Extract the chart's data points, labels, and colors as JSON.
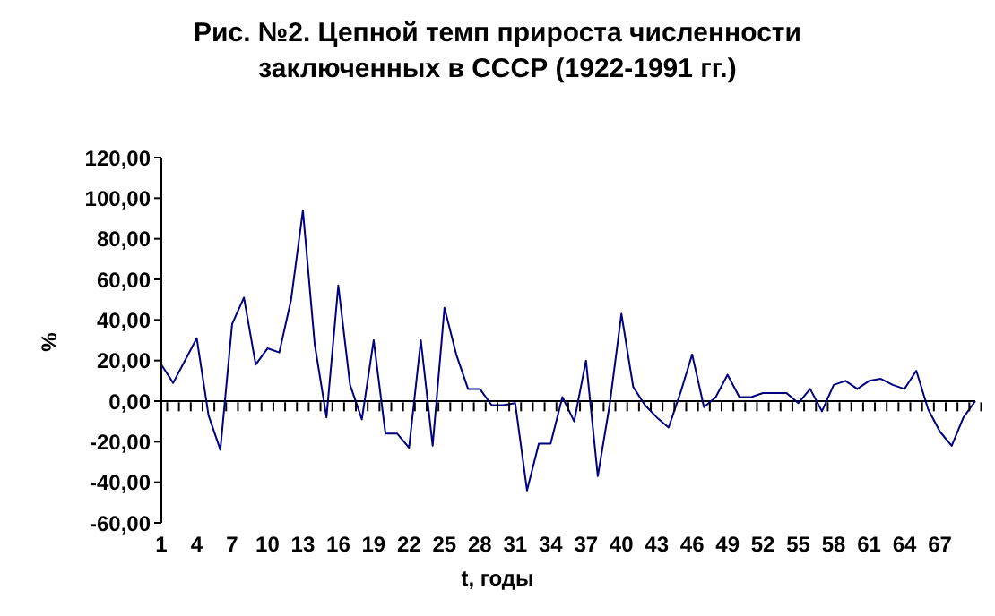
{
  "chart_data": {
    "type": "line",
    "title": "Рис. №2. Цепной темп прироста численности",
    "subtitle": "заключенных в СССР (1922-1991 гг.)",
    "xlabel": "t, годы",
    "ylabel": "%",
    "categories": [
      "1",
      null,
      null,
      "4",
      null,
      null,
      "7",
      null,
      null,
      "10",
      null,
      null,
      "13",
      null,
      null,
      "16",
      null,
      null,
      "19",
      null,
      null,
      "22",
      null,
      null,
      "25",
      null,
      null,
      "28",
      null,
      null,
      "31",
      null,
      null,
      "34",
      null,
      null,
      "37",
      null,
      null,
      "40",
      null,
      null,
      "43",
      null,
      null,
      "46",
      null,
      null,
      "49",
      null,
      null,
      "52",
      null,
      null,
      "55",
      null,
      null,
      "58",
      null,
      null,
      "61",
      null,
      null,
      "64",
      null,
      null,
      "67",
      null,
      null,
      null
    ],
    "series": [
      {
        "color": "#000080",
        "values": [
          18,
          9,
          20,
          31,
          -7,
          -24,
          38,
          51,
          18,
          26,
          24,
          50,
          94,
          28,
          -8,
          57,
          8,
          -9,
          30,
          -16,
          -16,
          -23,
          30,
          -22,
          46,
          23,
          6,
          6,
          -2,
          -2,
          -1,
          -44,
          -21,
          -21,
          2,
          -10,
          20,
          -37,
          -2,
          43,
          7,
          -2,
          -8,
          -13,
          4,
          23,
          -3,
          2,
          13,
          2,
          2,
          4,
          4,
          4,
          -1,
          6,
          -5,
          8,
          10,
          6,
          10,
          11,
          8,
          6,
          15,
          -4,
          -15,
          -22,
          -8,
          0
        ]
      }
    ],
    "ylim": [
      -60,
      120
    ],
    "yticks": [
      {
        "value": -60,
        "label": "-60,00"
      },
      {
        "value": -40,
        "label": "-40,00"
      },
      {
        "value": -20,
        "label": "-20,00"
      },
      {
        "value": 0,
        "label": "0,00"
      },
      {
        "value": 20,
        "label": "20,00"
      },
      {
        "value": 40,
        "label": "40,00"
      },
      {
        "value": 60,
        "label": "60,00"
      },
      {
        "value": 80,
        "label": "80,00"
      },
      {
        "value": 100,
        "label": "100,00"
      },
      {
        "value": 120,
        "label": "120,00"
      }
    ],
    "ref_lines": [
      {
        "axis": "y",
        "value": 0,
        "color": "#000000"
      }
    ],
    "grid": false,
    "legend": false,
    "marker": "none",
    "line_style": "solid"
  }
}
